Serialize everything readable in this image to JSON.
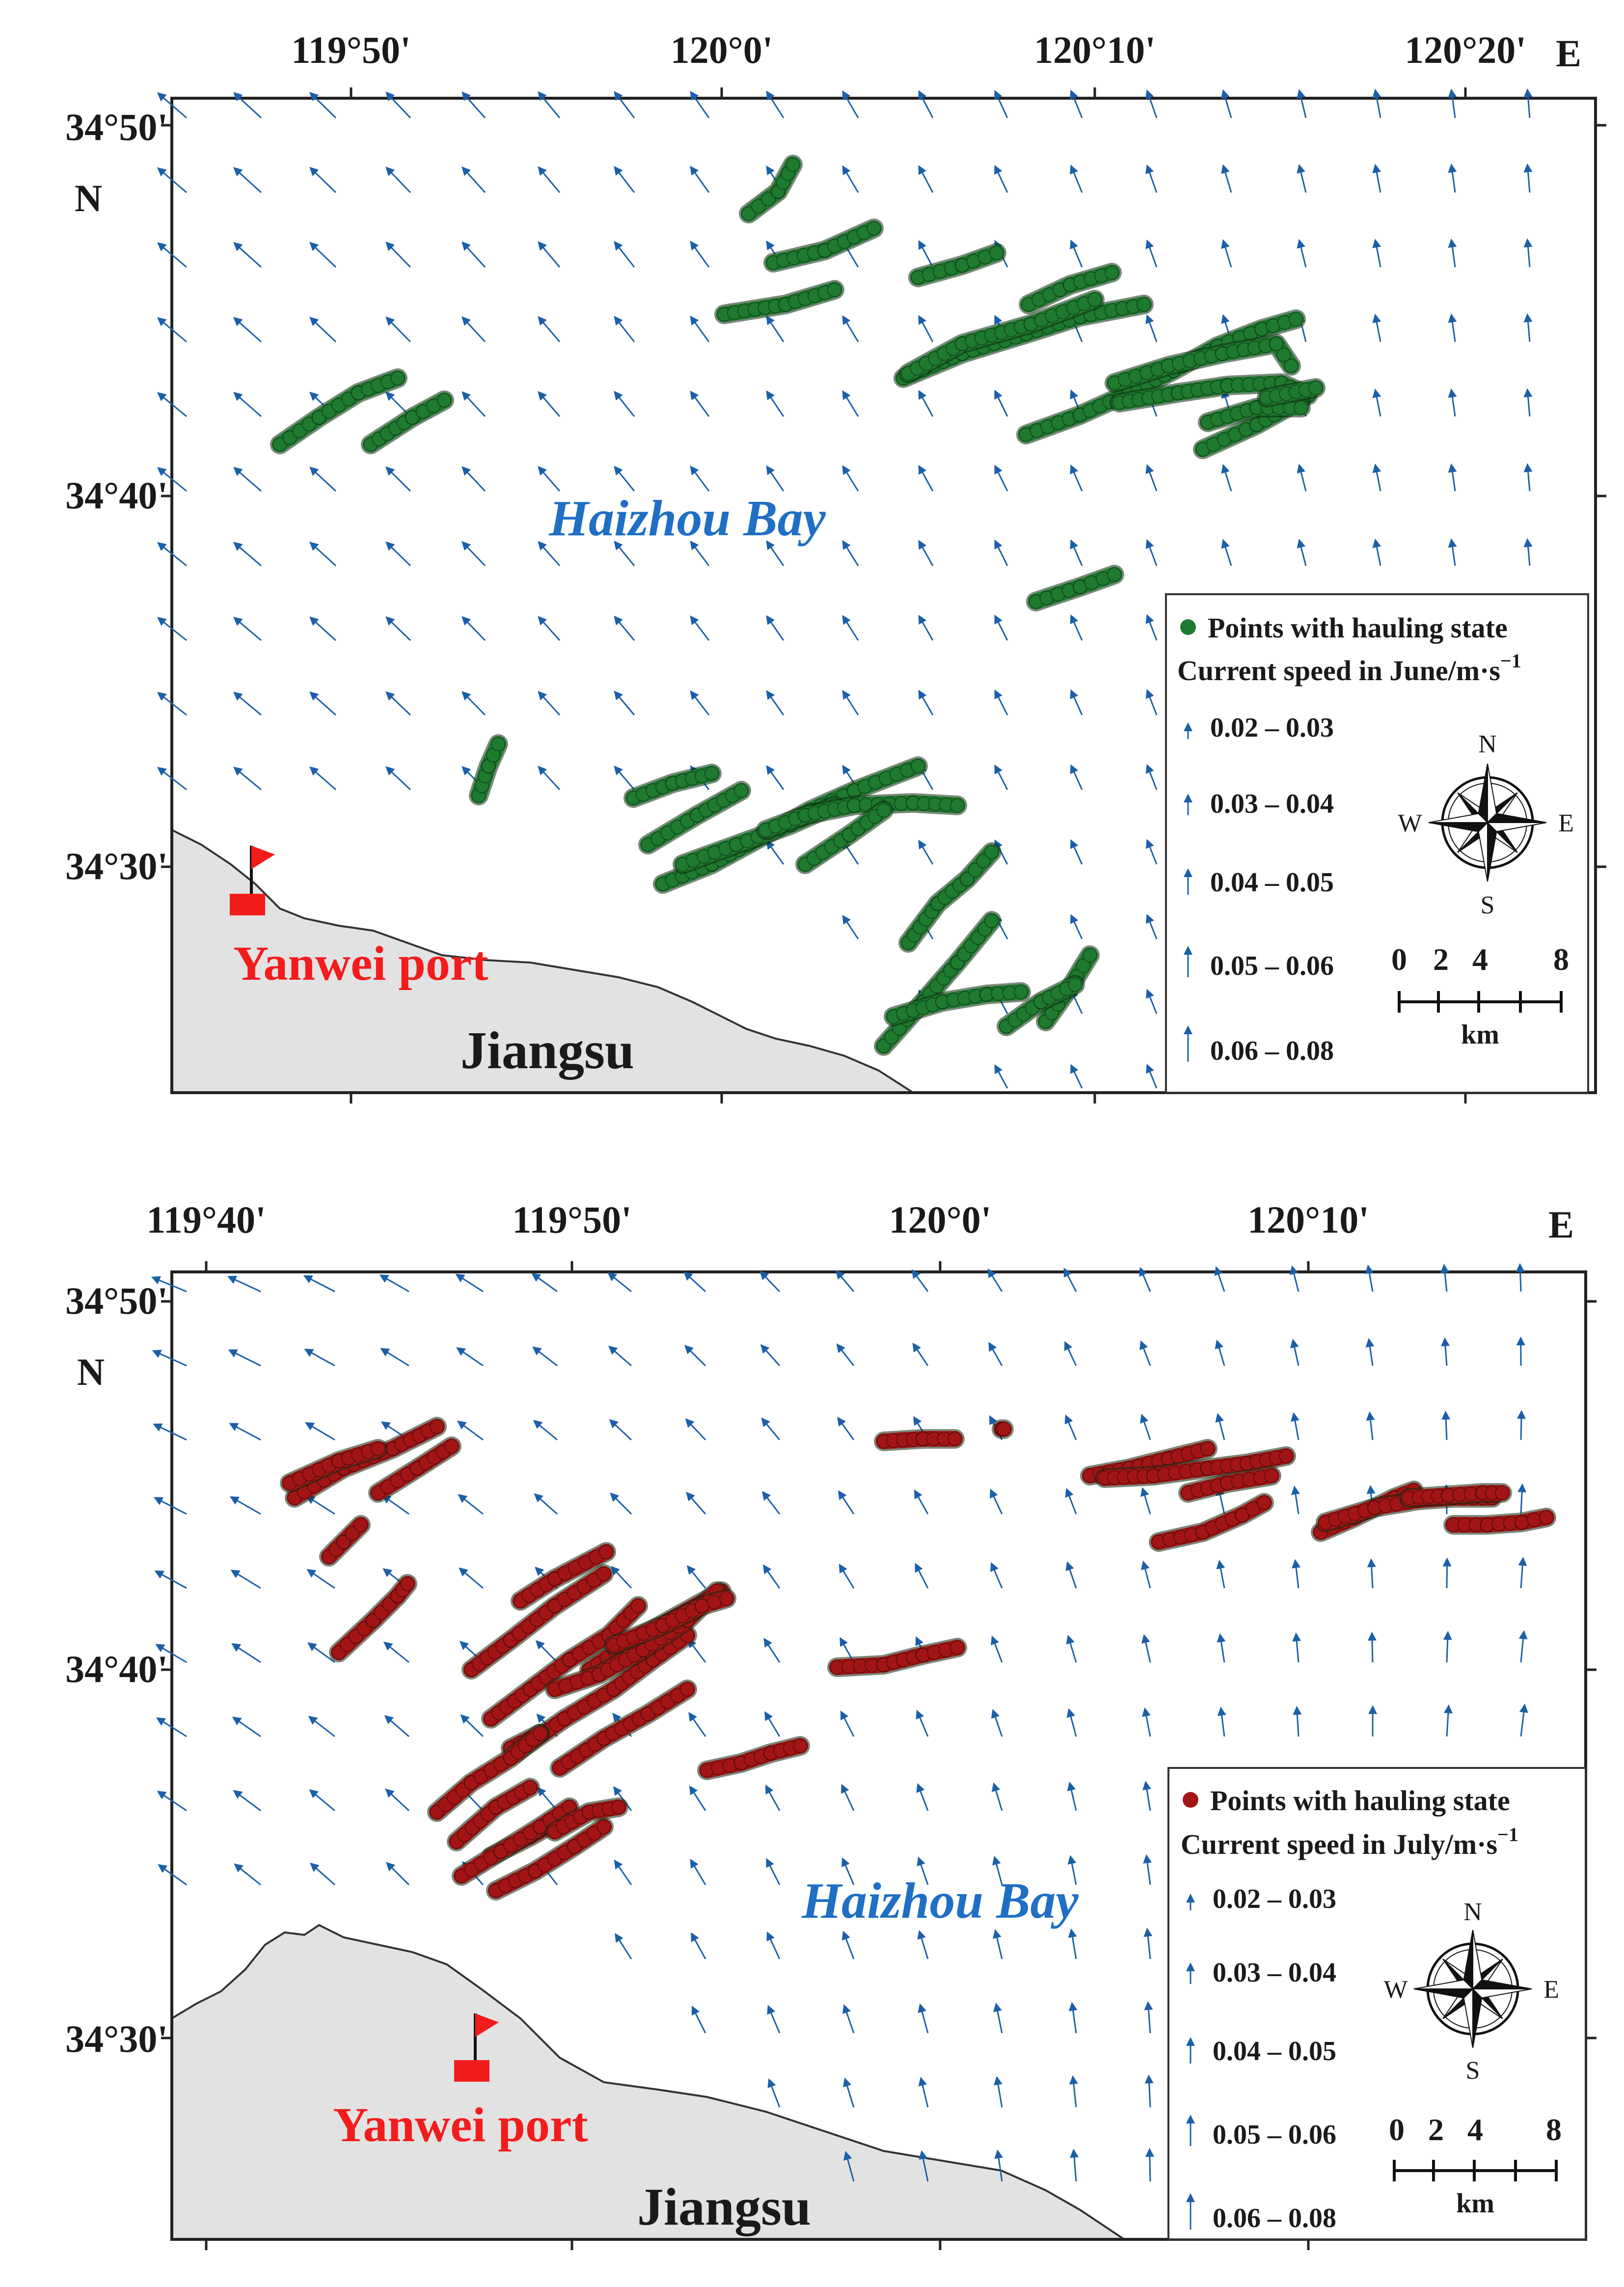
{
  "maps": [
    {
      "id": "june",
      "east_label": "E",
      "north_label": "N",
      "lon_labels": [
        "119°50'",
        "120°0'",
        "120°10'",
        "120°20'"
      ],
      "lat_labels": [
        "34°50'",
        "34°40'",
        "34°30'"
      ],
      "bay_label": "Haizhou Bay",
      "port_label": "Yanwei port",
      "land_label": "Jiangsu",
      "legend": {
        "points_label": "Points with hauling state",
        "speed_title_main": "Current speed in June/m·s",
        "speed_title_sup": "−1",
        "classes": [
          "0.02 – 0.03",
          "0.03 – 0.04",
          "0.04 – 0.05",
          "0.05 – 0.06",
          "0.06 – 0.08"
        ]
      },
      "compass": {
        "n": "N",
        "s": "S",
        "e": "E",
        "w": "W"
      },
      "scale": {
        "ticks": [
          "0",
          "2",
          "4",
          "8"
        ],
        "unit": "km"
      },
      "colors": {
        "points": "#1e7a2e",
        "arrows": "#1b5fa8",
        "land": "#e2e2e2"
      }
    },
    {
      "id": "july",
      "east_label": "E",
      "north_label": "N",
      "lon_labels": [
        "119°40'",
        "119°50'",
        "120°0'",
        "120°10'"
      ],
      "lat_labels": [
        "34°50'",
        "34°40'",
        "34°30'"
      ],
      "bay_label": "Haizhou Bay",
      "port_label": "Yanwei port",
      "land_label": "Jiangsu",
      "legend": {
        "points_label": "Points with hauling state",
        "speed_title_main": "Current speed in July/m·s",
        "speed_title_sup": "−1",
        "classes": [
          "0.02 – 0.03",
          "0.03 – 0.04",
          "0.04 – 0.05",
          "0.05 – 0.06",
          "0.06 – 0.08"
        ]
      },
      "compass": {
        "n": "N",
        "s": "S",
        "e": "E",
        "w": "W"
      },
      "scale": {
        "ticks": [
          "0",
          "2",
          "4",
          "8"
        ],
        "unit": "km"
      },
      "colors": {
        "points": "#a31515",
        "arrows": "#1b5fa8",
        "land": "#e2e2e2"
      }
    }
  ]
}
